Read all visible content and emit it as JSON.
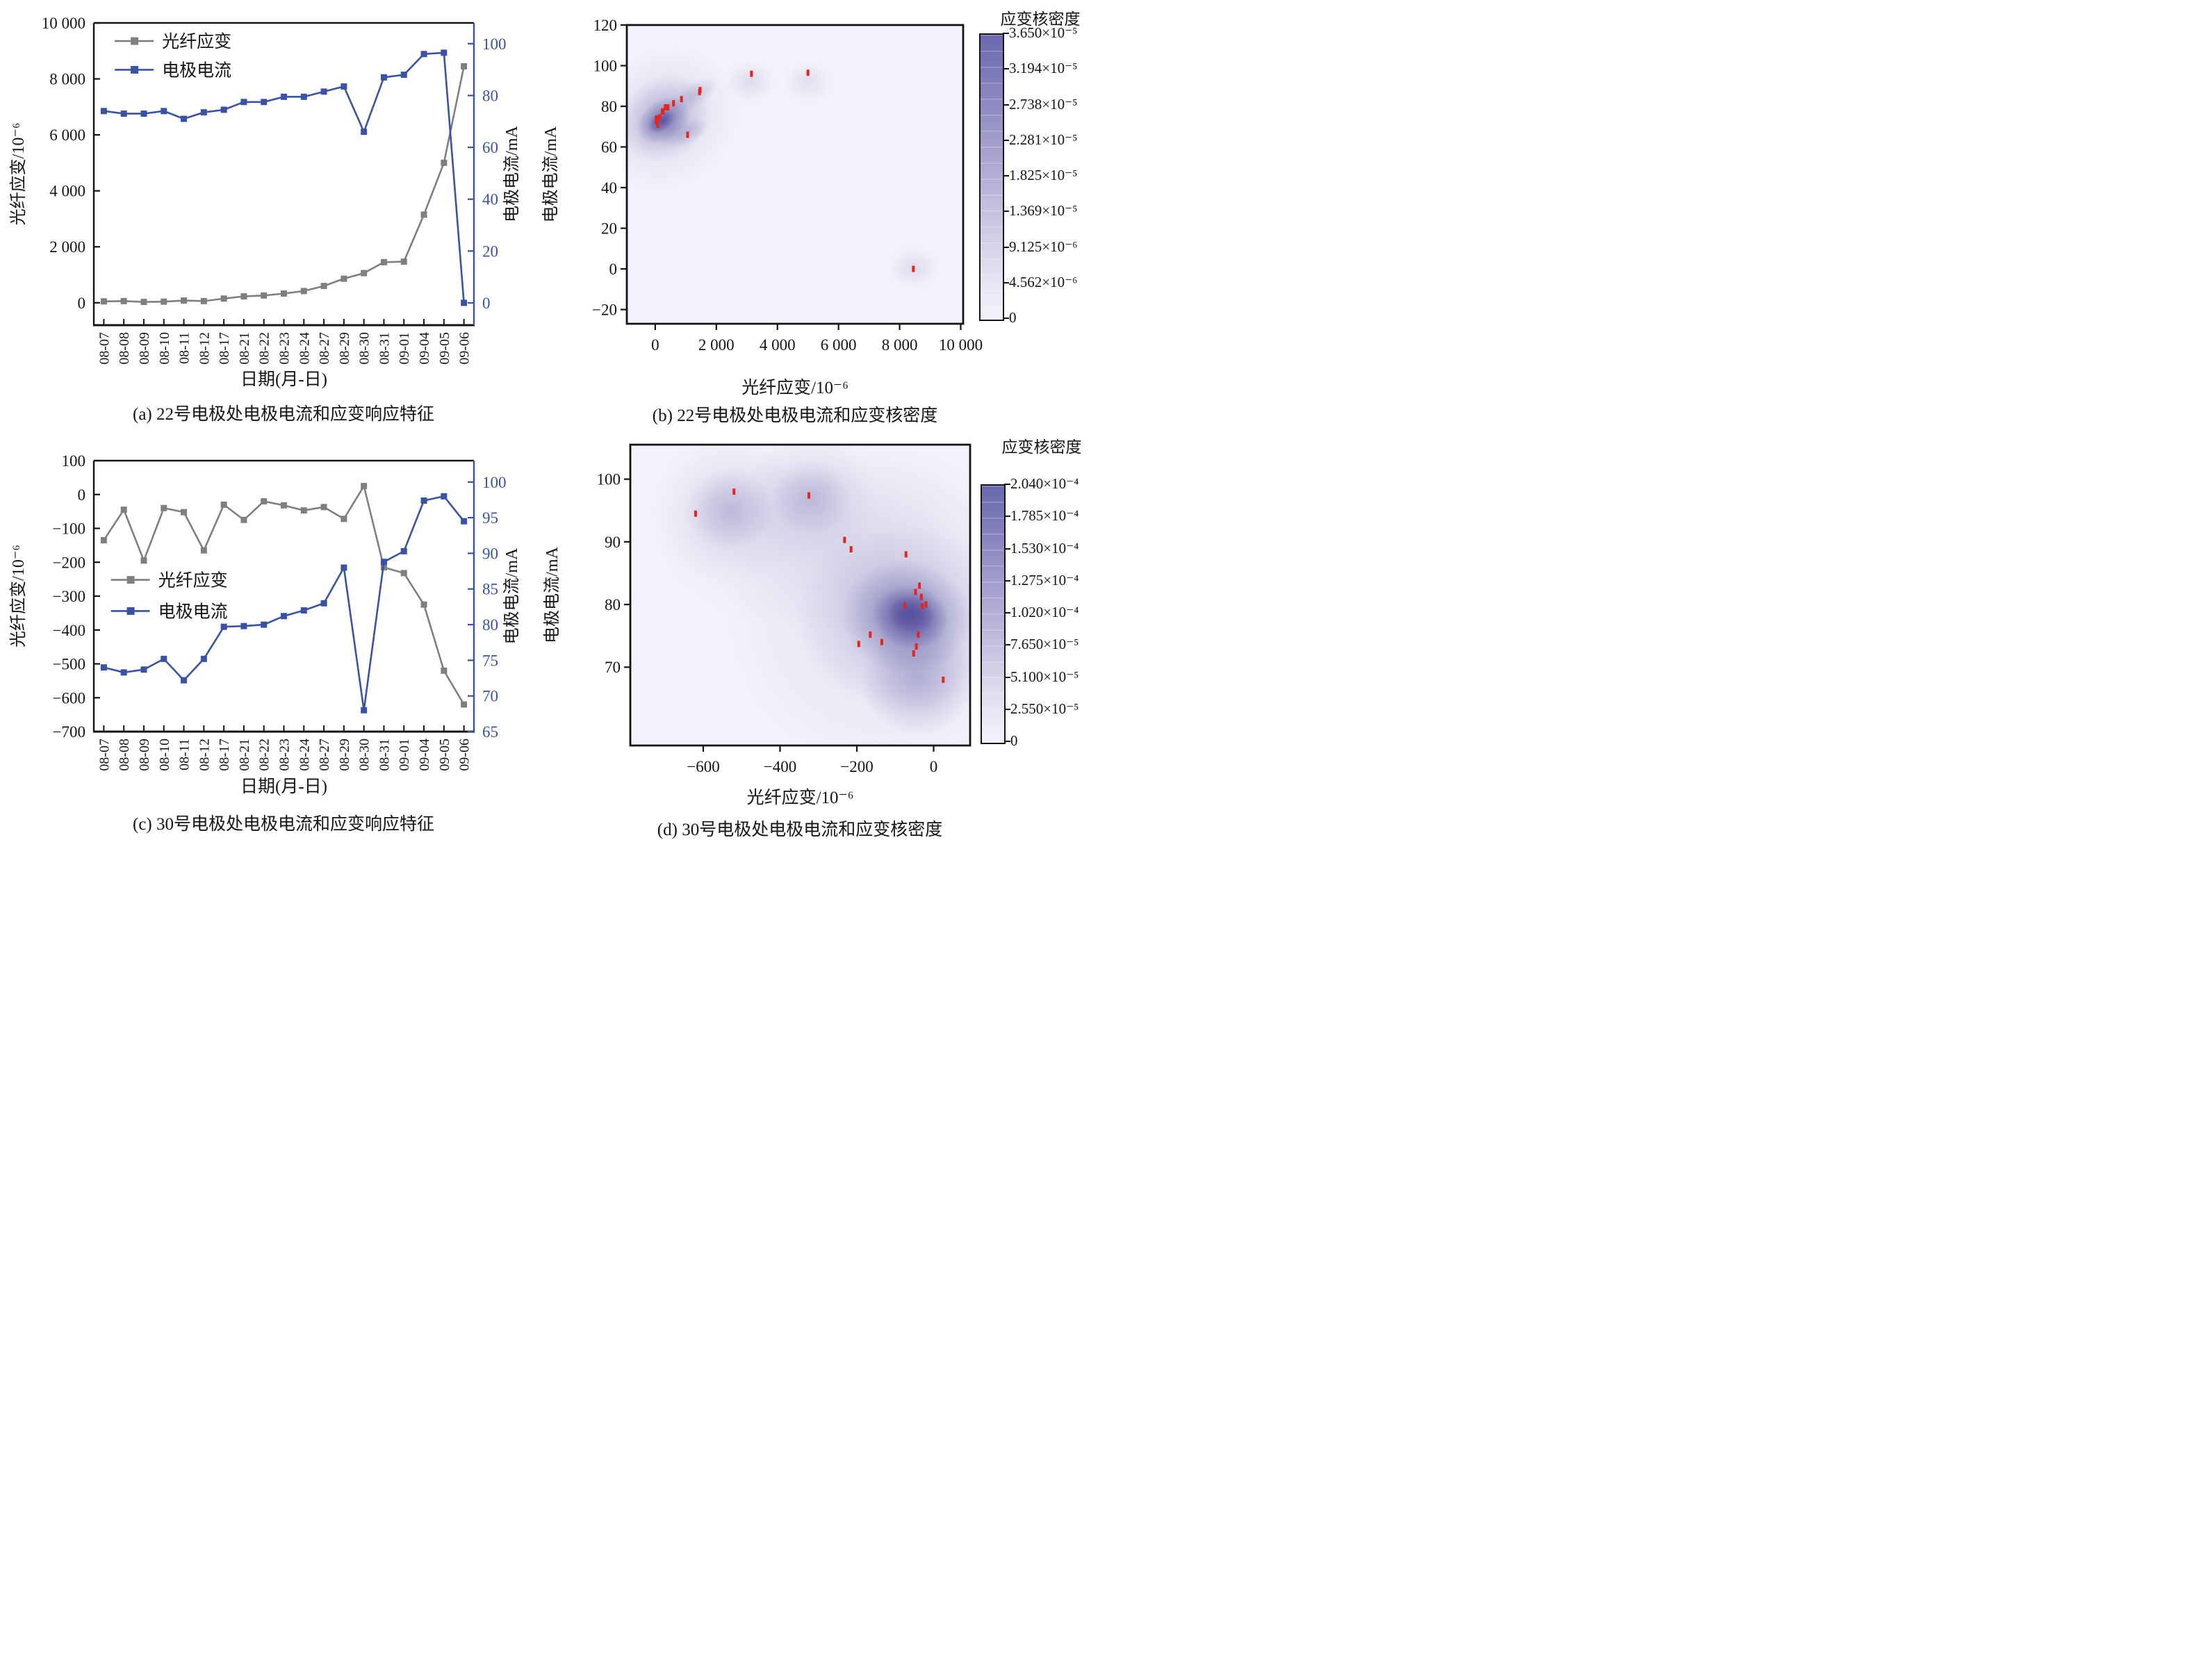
{
  "page": {
    "background": "#ffffff"
  },
  "colors": {
    "text": "#141414",
    "axis": "#141414",
    "strain_series": "#7f7f7f",
    "current_series": "#3952a3",
    "right_axis_blue": "#3952a3",
    "scatter_red": "#e3251f",
    "kde_base": "#57529e",
    "kde_background": "#f3f2fa"
  },
  "chart_data": [
    {
      "id": "a",
      "type": "line",
      "caption": "(a) 22号电极处电极电流和应变响应特征",
      "xlabel": "日期(月-日)",
      "ylabel_left": "光纤应变/10⁻⁶",
      "ylabel_right": "电极电流/mA",
      "legend": [
        "光纤应变",
        "电极电流"
      ],
      "legend_position": "upper-left",
      "categories": [
        "08-07",
        "08-08",
        "08-09",
        "08-10",
        "08-11",
        "08-12",
        "08-17",
        "08-21",
        "08-22",
        "08-23",
        "08-24",
        "08-27",
        "08-29",
        "08-30",
        "08-31",
        "09-01",
        "09-04",
        "09-05",
        "09-06"
      ],
      "series": [
        {
          "name": "光纤应变",
          "axis": "left",
          "values": [
            50,
            60,
            30,
            40,
            80,
            60,
            150,
            230,
            260,
            330,
            420,
            600,
            860,
            1060,
            1450,
            1470,
            3150,
            5000,
            8450
          ]
        },
        {
          "name": "电极电流",
          "axis": "right",
          "values": [
            74,
            73,
            73,
            74,
            71,
            73.5,
            74.5,
            77.5,
            77.5,
            79.5,
            79.5,
            81.5,
            83.5,
            66,
            87,
            88,
            96,
            96.5,
            0
          ]
        }
      ],
      "left_ticks": {
        "labels": [
          "10 000",
          "8 000",
          "6 000",
          "4 000",
          "2 000",
          "0"
        ],
        "values": [
          10000,
          8000,
          6000,
          4000,
          2000,
          0
        ]
      },
      "right_ticks": {
        "labels": [
          "100",
          "80",
          "60",
          "40",
          "20",
          "0"
        ],
        "values": [
          100,
          80,
          60,
          40,
          20,
          0
        ]
      },
      "ylim_left": [
        -800,
        10000
      ],
      "ylim_right": [
        -8.6,
        108
      ]
    },
    {
      "id": "b",
      "type": "heatmap",
      "caption": "(b) 22号电极处电极电流和应变核密度",
      "xlabel": "光纤应变/10⁻⁶",
      "ylabel": "电极电流/mA",
      "xlim": [
        -930,
        10080
      ],
      "ylim": [
        -27,
        120
      ],
      "xticks": {
        "labels": [
          "0",
          "2 000",
          "4 000",
          "6 000",
          "8 000",
          "10 000"
        ],
        "values": [
          0,
          2000,
          4000,
          6000,
          8000,
          10000
        ]
      },
      "yticks": {
        "labels": [
          "120",
          "100",
          "80",
          "60",
          "40",
          "20",
          "0",
          "−20"
        ],
        "values": [
          120,
          100,
          80,
          60,
          40,
          20,
          0,
          -20
        ]
      },
      "points": [
        [
          50,
          74
        ],
        [
          60,
          73
        ],
        [
          30,
          73
        ],
        [
          40,
          74
        ],
        [
          80,
          71
        ],
        [
          60,
          73.5
        ],
        [
          150,
          74.5
        ],
        [
          230,
          77.5
        ],
        [
          260,
          77.5
        ],
        [
          330,
          79.5
        ],
        [
          420,
          79.5
        ],
        [
          600,
          81.5
        ],
        [
          860,
          83.5
        ],
        [
          1060,
          66
        ],
        [
          1450,
          87
        ],
        [
          1470,
          88
        ],
        [
          3150,
          96
        ],
        [
          5000,
          96.5
        ],
        [
          8450,
          0
        ]
      ],
      "density_blobs": [
        [
          300,
          74,
          2500,
          33,
          -35,
          0.15
        ],
        [
          300,
          74,
          1600,
          20,
          -35,
          0.33
        ],
        [
          260,
          73,
          960,
          10,
          -35,
          0.62
        ],
        [
          200,
          72.5,
          500,
          4.5,
          -35,
          0.88
        ],
        [
          950,
          67,
          900,
          6,
          -20,
          0.22
        ],
        [
          1300,
          86,
          900,
          6,
          -30,
          0.2
        ],
        [
          3100,
          92,
          800,
          10,
          0,
          0.13
        ],
        [
          5000,
          92,
          780,
          10,
          0,
          0.11
        ],
        [
          8450,
          0.5,
          800,
          10,
          0,
          0.13
        ]
      ],
      "colorbar": {
        "title": "应变核密度",
        "labels": [
          "3.650×10⁻⁵",
          "3.194×10⁻⁵",
          "2.738×10⁻⁵",
          "2.281×10⁻⁵",
          "1.825×10⁻⁵",
          "1.369×10⁻⁵",
          "9.125×10⁻⁶",
          "4.562×10⁻⁶",
          "0"
        ]
      }
    },
    {
      "id": "c",
      "type": "line",
      "caption": "(c) 30号电极处电极电流和应变响应特征",
      "xlabel": "日期(月-日)",
      "ylabel_left": "光纤应变/10⁻⁶",
      "ylabel_right": "电极电流/mA",
      "legend": [
        "光纤应变",
        "电极电流"
      ],
      "legend_position": "middle-left",
      "categories": [
        "08-07",
        "08-08",
        "08-09",
        "08-10",
        "08-11",
        "08-12",
        "08-17",
        "08-21",
        "08-22",
        "08-23",
        "08-24",
        "08-27",
        "08-29",
        "08-30",
        "08-31",
        "09-01",
        "09-04",
        "09-05",
        "09-06"
      ],
      "series": [
        {
          "name": "光纤应变",
          "axis": "left",
          "values": [
            -135,
            -45,
            -195,
            -40,
            -52,
            -165,
            -30,
            -75,
            -20,
            -32,
            -47,
            -37,
            -72,
            25,
            -215,
            -232,
            -325,
            -520,
            -620
          ]
        },
        {
          "name": "电极电流",
          "axis": "right",
          "values": [
            74,
            73.3,
            73.7,
            75.2,
            72.2,
            75.2,
            79.7,
            79.8,
            80,
            81.2,
            82,
            83,
            88,
            68,
            88.8,
            90.3,
            97.4,
            98,
            94.5
          ]
        }
      ],
      "left_ticks": {
        "labels": [
          "100",
          "0",
          "−100",
          "−200",
          "−300",
          "−400",
          "−500",
          "−600",
          "−700"
        ],
        "values": [
          100,
          0,
          -100,
          -200,
          -300,
          -400,
          -500,
          -600,
          -700
        ]
      },
      "right_ticks": {
        "labels": [
          "100",
          "95",
          "90",
          "85",
          "80",
          "75",
          "70",
          "65"
        ],
        "values": [
          100,
          95,
          90,
          85,
          80,
          75,
          70,
          65
        ]
      },
      "ylim_left": [
        -700,
        100
      ],
      "ylim_right": [
        65,
        103
      ]
    },
    {
      "id": "d",
      "type": "heatmap",
      "caption": "(d) 30号电极处电极电流和应变核密度",
      "xlabel": "光纤应变/10⁻⁶",
      "ylabel": "电极电流/mA",
      "xlim": [
        -790,
        95
      ],
      "ylim": [
        57.5,
        105.5
      ],
      "xticks": {
        "labels": [
          "−600",
          "−400",
          "−200",
          "0"
        ],
        "values": [
          -600,
          -400,
          -200,
          0
        ]
      },
      "yticks": {
        "labels": [
          "100",
          "90",
          "80",
          "70"
        ],
        "values": [
          100,
          90,
          80,
          70
        ]
      },
      "points": [
        [
          -135,
          74
        ],
        [
          -45,
          73.3
        ],
        [
          -195,
          73.7
        ],
        [
          -40,
          75.2
        ],
        [
          -52,
          72.2
        ],
        [
          -165,
          75.2
        ],
        [
          -30,
          79.7
        ],
        [
          -75,
          79.8
        ],
        [
          -20,
          80
        ],
        [
          -32,
          81.2
        ],
        [
          -47,
          82
        ],
        [
          -37,
          83
        ],
        [
          -72,
          88
        ],
        [
          25,
          68
        ],
        [
          -215,
          88.8
        ],
        [
          -232,
          90.3
        ],
        [
          -325,
          97.4
        ],
        [
          -520,
          98
        ],
        [
          -620,
          94.5
        ]
      ],
      "density_blobs": [
        [
          -300,
          91,
          420,
          15,
          0,
          0.1
        ],
        [
          -530,
          95,
          200,
          12,
          0,
          0.13
        ],
        [
          -530,
          95,
          115,
          6.5,
          0,
          0.22
        ],
        [
          -320,
          97,
          170,
          11,
          0,
          0.12
        ],
        [
          -320,
          97,
          105,
          6,
          0,
          0.2
        ],
        [
          -120,
          79,
          420,
          26,
          0,
          0.11
        ],
        [
          -80,
          78,
          280,
          15,
          8,
          0.25
        ],
        [
          -70,
          78,
          170,
          9,
          12,
          0.5
        ],
        [
          -60,
          78,
          100,
          5,
          12,
          0.88
        ],
        [
          -58,
          78.5,
          60,
          3,
          12,
          0.95
        ],
        [
          -40,
          68,
          150,
          9,
          0,
          0.32
        ]
      ],
      "colorbar": {
        "title": "应变核密度",
        "labels": [
          "2.040×10⁻⁴",
          "1.785×10⁻⁴",
          "1.530×10⁻⁴",
          "1.275×10⁻⁴",
          "1.020×10⁻⁴",
          "7.650×10⁻⁵",
          "5.100×10⁻⁵",
          "2.550×10⁻⁵",
          "0"
        ]
      }
    }
  ]
}
